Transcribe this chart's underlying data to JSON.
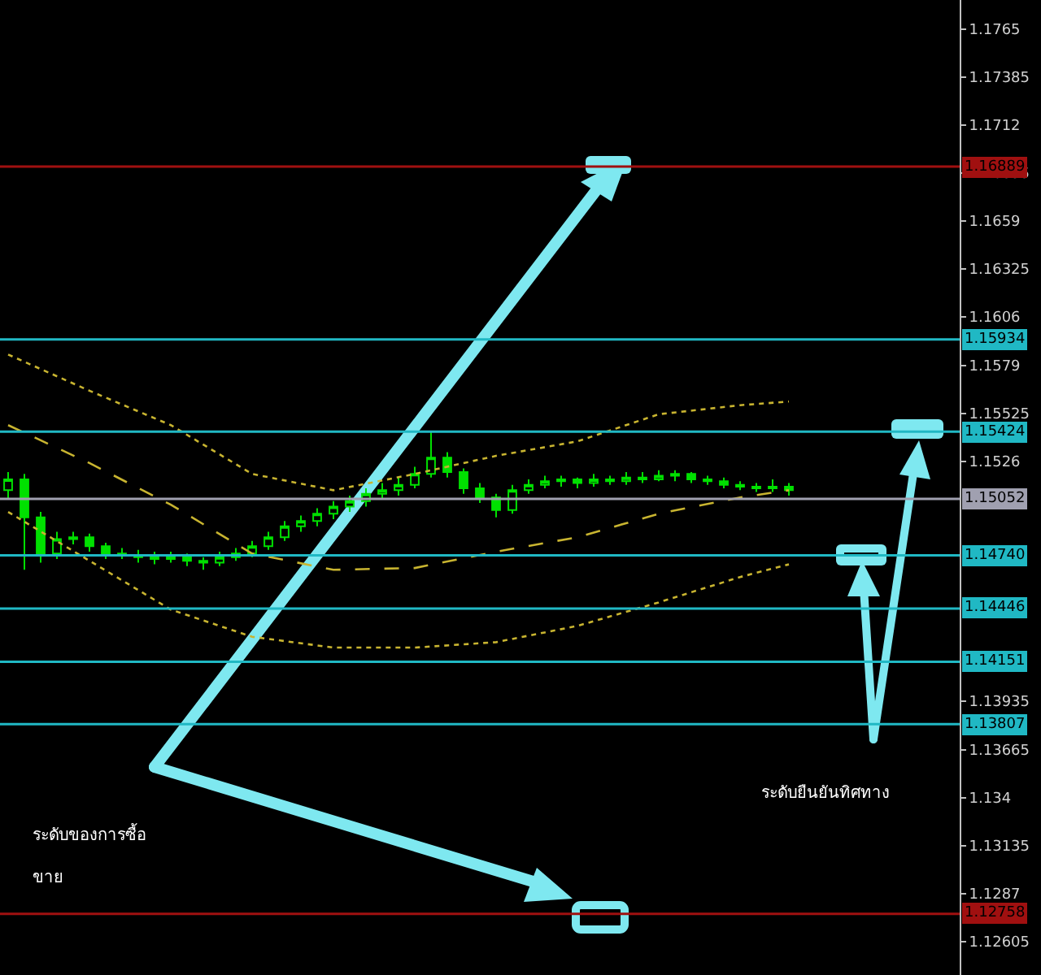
{
  "chart_data": {
    "type": "candlestick",
    "color": "#00e000",
    "categories": [
      null,
      null,
      null,
      null,
      null,
      null,
      null,
      null,
      null,
      null,
      null,
      null,
      null,
      null,
      null,
      null,
      null,
      null,
      null,
      null,
      null,
      null,
      null,
      null,
      null,
      null,
      null,
      null,
      null,
      null,
      null,
      null,
      null,
      null,
      null,
      null,
      null,
      null,
      null,
      null,
      null,
      null,
      null,
      null,
      null,
      null,
      null,
      null,
      null,
      null,
      null,
      null,
      null,
      null,
      null,
      null,
      null,
      null,
      null
    ],
    "ohlc": [
      [
        1.151,
        1.152,
        1.1505,
        1.1516
      ],
      [
        1.1516,
        1.1519,
        1.1466,
        1.1495
      ],
      [
        1.1495,
        1.1498,
        1.147,
        1.1475
      ],
      [
        1.1475,
        1.1487,
        1.1472,
        1.1483
      ],
      [
        1.1483,
        1.1487,
        1.148,
        1.1484
      ],
      [
        1.1484,
        1.1486,
        1.1476,
        1.1479
      ],
      [
        1.1479,
        1.1481,
        1.1472,
        1.1475
      ],
      [
        1.1475,
        1.1478,
        1.1472,
        1.1474
      ],
      [
        1.1474,
        1.1477,
        1.147,
        1.1473
      ],
      [
        1.1473,
        1.1476,
        1.1469,
        1.1472
      ],
      [
        1.1472,
        1.1476,
        1.147,
        1.1473
      ],
      [
        1.1473,
        1.1475,
        1.1468,
        1.1471
      ],
      [
        1.1471,
        1.1473,
        1.1466,
        1.147
      ],
      [
        1.147,
        1.1476,
        1.1468,
        1.1473
      ],
      [
        1.1473,
        1.1478,
        1.1471,
        1.1475
      ],
      [
        1.1475,
        1.1482,
        1.1473,
        1.1479
      ],
      [
        1.1479,
        1.1487,
        1.1477,
        1.1484
      ],
      [
        1.1484,
        1.1493,
        1.1482,
        1.149
      ],
      [
        1.149,
        1.1496,
        1.1487,
        1.1493
      ],
      [
        1.1493,
        1.15,
        1.149,
        1.1497
      ],
      [
        1.1497,
        1.1504,
        1.1494,
        1.1501
      ],
      [
        1.1501,
        1.1507,
        1.1498,
        1.1504
      ],
      [
        1.1504,
        1.1511,
        1.1501,
        1.1508
      ],
      [
        1.1508,
        1.1514,
        1.1505,
        1.151
      ],
      [
        1.151,
        1.1517,
        1.1507,
        1.1513
      ],
      [
        1.1513,
        1.1523,
        1.1511,
        1.1519
      ],
      [
        1.1519,
        1.1543,
        1.1517,
        1.1528
      ],
      [
        1.1528,
        1.1531,
        1.1517,
        1.152
      ],
      [
        1.152,
        1.1522,
        1.1508,
        1.1511
      ],
      [
        1.1511,
        1.1514,
        1.1503,
        1.1506
      ],
      [
        1.1506,
        1.1508,
        1.1495,
        1.1499
      ],
      [
        1.1499,
        1.1513,
        1.1497,
        1.151
      ],
      [
        1.151,
        1.1516,
        1.1508,
        1.1513
      ],
      [
        1.1513,
        1.1518,
        1.1511,
        1.1515
      ],
      [
        1.1515,
        1.1518,
        1.1512,
        1.1516
      ],
      [
        1.1516,
        1.1517,
        1.1511,
        1.1514
      ],
      [
        1.1514,
        1.1519,
        1.1512,
        1.1516
      ],
      [
        1.1516,
        1.1518,
        1.1513,
        1.1515
      ],
      [
        1.1515,
        1.152,
        1.1513,
        1.1517
      ],
      [
        1.1517,
        1.152,
        1.1514,
        1.1516
      ],
      [
        1.1516,
        1.1521,
        1.1515,
        1.1518
      ],
      [
        1.1518,
        1.1521,
        1.1515,
        1.1519
      ],
      [
        1.1519,
        1.152,
        1.1514,
        1.1516
      ],
      [
        1.1516,
        1.1518,
        1.1513,
        1.1515
      ],
      [
        1.1515,
        1.1517,
        1.1511,
        1.1513
      ],
      [
        1.1513,
        1.1515,
        1.151,
        1.1512
      ],
      [
        1.1512,
        1.1514,
        1.1509,
        1.1511
      ],
      [
        1.1511,
        1.1516,
        1.1509,
        1.1512
      ],
      [
        1.1512,
        1.1514,
        1.1507,
        1.151
      ],
      null,
      null,
      null,
      null,
      null,
      null,
      null,
      null,
      null,
      null
    ],
    "series": [
      {
        "type": "line",
        "color": "#c8b430",
        "line_style": "dotted",
        "values": [
          1.1585,
          null,
          null,
          null,
          null,
          1.1565,
          null,
          null,
          null,
          null,
          1.1546,
          null,
          null,
          null,
          null,
          1.1519,
          null,
          null,
          null,
          null,
          1.151,
          null,
          null,
          null,
          null,
          1.1519,
          null,
          null,
          null,
          null,
          1.1529,
          null,
          null,
          null,
          null,
          1.1537,
          null,
          null,
          null,
          null,
          1.1552,
          null,
          null,
          null,
          null,
          1.1557,
          null,
          null,
          1.1559,
          null,
          null,
          null,
          null,
          null,
          null,
          null,
          null,
          null,
          null
        ]
      },
      {
        "type": "line",
        "color": "#c8b430",
        "line_style": "dashed",
        "values": [
          1.1546,
          null,
          null,
          null,
          null,
          1.1525,
          null,
          null,
          null,
          null,
          1.1502,
          null,
          null,
          null,
          null,
          1.1475,
          null,
          null,
          null,
          null,
          1.1466,
          null,
          null,
          null,
          null,
          1.1467,
          null,
          null,
          null,
          null,
          1.1476,
          null,
          null,
          null,
          null,
          1.1484,
          null,
          null,
          null,
          null,
          1.1497,
          null,
          null,
          null,
          null,
          1.1506,
          null,
          null,
          1.151,
          null,
          null,
          null,
          null,
          null,
          null,
          null,
          null,
          null,
          null
        ]
      },
      {
        "type": "line",
        "color": "#c8b430",
        "line_style": "dotted",
        "values": [
          1.1498,
          null,
          null,
          null,
          null,
          1.1471,
          null,
          null,
          null,
          null,
          1.1444,
          null,
          null,
          null,
          null,
          1.1429,
          null,
          null,
          null,
          null,
          1.1423,
          null,
          null,
          null,
          null,
          1.1423,
          null,
          null,
          null,
          null,
          1.1426,
          null,
          null,
          null,
          null,
          1.1435,
          null,
          null,
          null,
          null,
          1.1448,
          null,
          null,
          null,
          null,
          1.1462,
          null,
          null,
          1.1469,
          null,
          null,
          null,
          null,
          null,
          null,
          null,
          null,
          null,
          null
        ]
      }
    ],
    "ylim": [
      1.1242,
      1.1781
    ],
    "yticks": [
      1.1765,
      1.17385,
      1.1712,
      1.16855,
      1.1659,
      1.16325,
      1.1606,
      1.1579,
      1.15525,
      1.1526,
      1.13935,
      1.13665,
      1.134,
      1.13135,
      1.1287,
      1.12605
    ],
    "ref_lines": [
      {
        "axis": "y",
        "value": 1.16889,
        "label": "1.16889",
        "color": "#a01010"
      },
      {
        "axis": "y",
        "value": 1.15934,
        "label": "1.15934",
        "color": "#20b8c4"
      },
      {
        "axis": "y",
        "value": 1.15424,
        "label": "1.15424",
        "color": "#20b8c4"
      },
      {
        "axis": "y",
        "value": 1.15052,
        "label": "1.15052",
        "color": "#a0a0b0"
      },
      {
        "axis": "y",
        "value": 1.1474,
        "label": "1.14740",
        "color": "#20b8c4"
      },
      {
        "axis": "y",
        "value": 1.14446,
        "label": "1.14446",
        "color": "#20b8c4"
      },
      {
        "axis": "y",
        "value": 1.14151,
        "label": "1.14151",
        "color": "#20b8c4"
      },
      {
        "axis": "y",
        "value": 1.13807,
        "label": "1.13807",
        "color": "#20b8c4"
      },
      {
        "axis": "y",
        "value": 1.12758,
        "label": "1.12758",
        "color": "#a01010"
      }
    ],
    "annotations": [
      "ระดับของการซื้อ\nขาย",
      "ระดับยืนยันทิศทาง"
    ],
    "tick_labels": "y",
    "grid": false
  }
}
